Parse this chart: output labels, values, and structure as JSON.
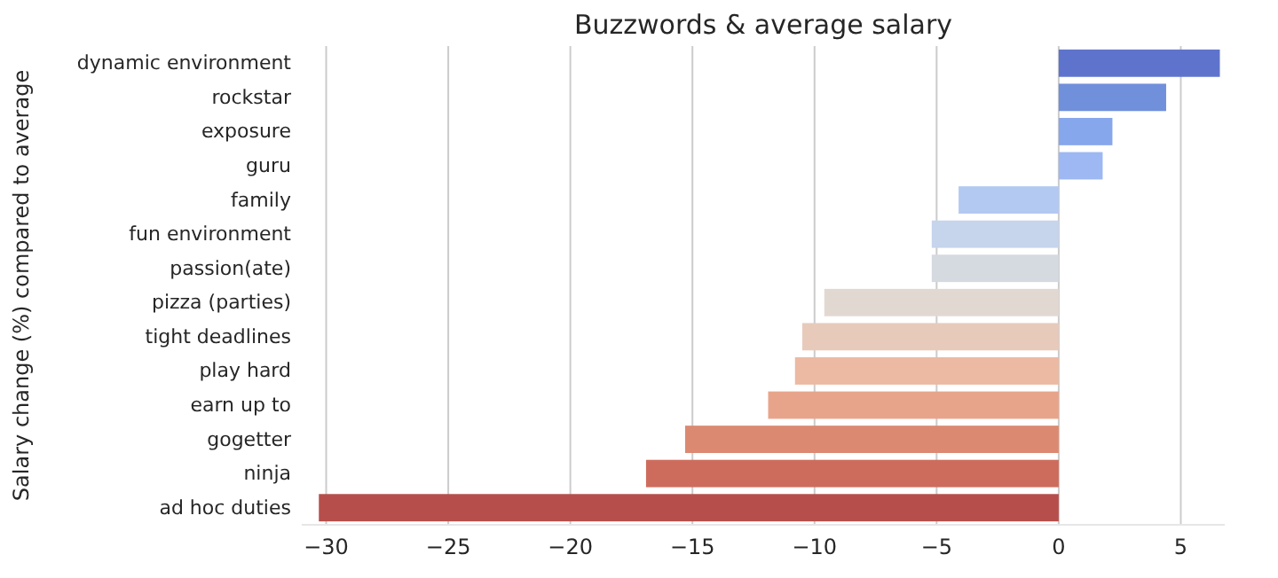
{
  "chart_data": {
    "type": "bar",
    "orientation": "horizontal",
    "title": "Buzzwords & average salary",
    "ylabel": "Salary change (%) compared to average",
    "categories": [
      "dynamic environment",
      "rockstar",
      "exposure",
      "guru",
      "family",
      "fun environment",
      "passion(ate)",
      "pizza (parties)",
      "tight deadlines",
      "play hard",
      "earn up to",
      "gogetter",
      "ninja",
      "ad hoc duties"
    ],
    "values": [
      6.6,
      4.4,
      2.2,
      1.8,
      -4.1,
      -5.2,
      -5.2,
      -9.6,
      -10.5,
      -10.8,
      -11.9,
      -15.3,
      -16.9,
      -30.3
    ],
    "colors": [
      "#5e74cc",
      "#7190db",
      "#87a7ec",
      "#9db8f2",
      "#b3c9f2",
      "#c6d4ec",
      "#d5d9e0",
      "#e2d8d2",
      "#e8cabb",
      "#ecb9a3",
      "#e8a48b",
      "#db8a71",
      "#cd6c5d",
      "#b64f4b"
    ],
    "xlim": [
      -31,
      6.8
    ],
    "xticks": [
      -30,
      -25,
      -20,
      -15,
      -10,
      -5,
      0,
      5
    ],
    "grid": "x"
  }
}
